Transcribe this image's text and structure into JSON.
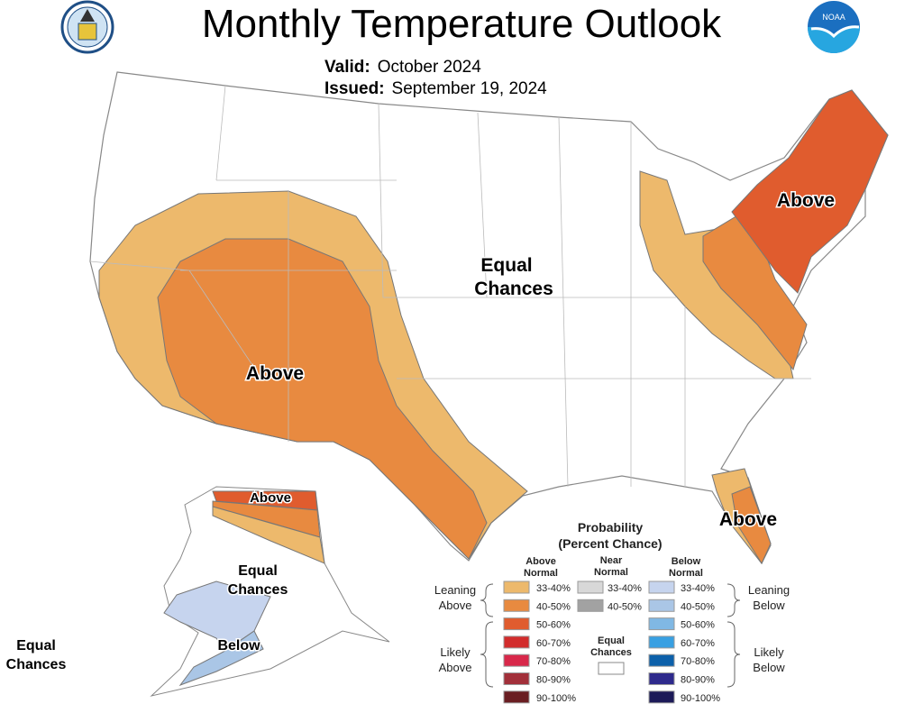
{
  "header": {
    "title": "Monthly Temperature Outlook",
    "valid_label": "Valid:",
    "valid_value": "October 2024",
    "issued_label": "Issued:",
    "issued_value": "September 19, 2024",
    "logos": [
      "doc-seal-logo",
      "noaa-logo"
    ]
  },
  "map_labels": {
    "conus_above_west": "Above",
    "conus_above_ne": "Above",
    "conus_above_fl": "Above",
    "conus_equal_1": "Equal",
    "conus_equal_2": "Chances",
    "ak_above": "Above",
    "ak_equal_1": "Equal",
    "ak_equal_2": "Chances",
    "ak_below": "Below",
    "hi_equal_1": "Equal",
    "hi_equal_2": "Chances"
  },
  "legend": {
    "title_1": "Probability",
    "title_2": "(Percent Chance)",
    "col_above_1": "Above",
    "col_above_2": "Normal",
    "col_near_1": "Near",
    "col_near_2": "Normal",
    "col_below_1": "Below",
    "col_below_2": "Normal",
    "leaning_above_1": "Leaning",
    "leaning_above_2": "Above",
    "likely_above_1": "Likely",
    "likely_above_2": "Above",
    "leaning_below_1": "Leaning",
    "leaning_below_2": "Below",
    "likely_below_1": "Likely",
    "likely_below_2": "Below",
    "equal_1": "Equal",
    "equal_2": "Chances",
    "above": [
      {
        "range": "33-40%",
        "color": "#EDB96C"
      },
      {
        "range": "40-50%",
        "color": "#E88A40"
      },
      {
        "range": "50-60%",
        "color": "#E05C2E"
      },
      {
        "range": "60-70%",
        "color": "#D22C2C"
      },
      {
        "range": "70-80%",
        "color": "#D8284A"
      },
      {
        "range": "80-90%",
        "color": "#A2303A"
      },
      {
        "range": "90-100%",
        "color": "#6A1E22"
      }
    ],
    "near": [
      {
        "range": "33-40%",
        "color": "#D8D8D8"
      },
      {
        "range": "40-50%",
        "color": "#A2A2A2"
      }
    ],
    "below": [
      {
        "range": "33-40%",
        "color": "#C6D4EE"
      },
      {
        "range": "40-50%",
        "color": "#AAC6E6"
      },
      {
        "range": "50-60%",
        "color": "#80B8E4"
      },
      {
        "range": "60-70%",
        "color": "#38A0E2"
      },
      {
        "range": "70-80%",
        "color": "#0C60AA"
      },
      {
        "range": "80-90%",
        "color": "#2E2A8C"
      },
      {
        "range": "90-100%",
        "color": "#1C1A58"
      }
    ]
  }
}
